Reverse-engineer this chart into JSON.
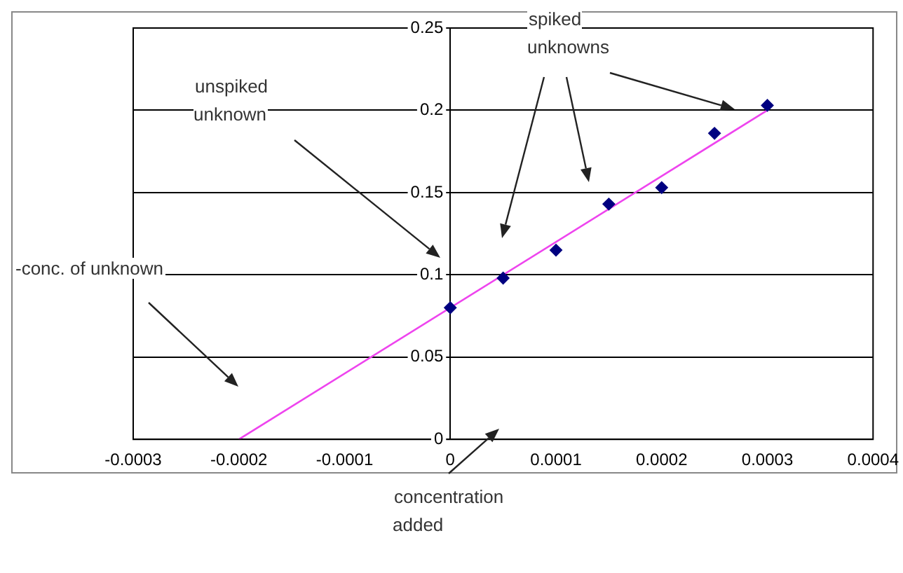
{
  "chart_data": {
    "type": "scatter",
    "annotations": [
      "unspiked unknown",
      "spiked unknowns",
      "-conc. of unknown",
      "concentration added"
    ],
    "series": [
      {
        "type": "scatter",
        "color": "#000080",
        "marker": "diamond",
        "x": [
          0,
          5e-05,
          0.0001,
          0.00015,
          0.0002,
          0.00025,
          0.0003
        ],
        "values": [
          0.08,
          0.098,
          0.115,
          0.143,
          0.153,
          0.186,
          0.203
        ]
      },
      {
        "type": "line",
        "color": "#ee44ee",
        "marker": "none",
        "line_style": "solid",
        "x": [
          -0.0002,
          0.0003
        ],
        "values": [
          0,
          0.2
        ]
      }
    ],
    "xlim": [
      -0.0003,
      0.0004
    ],
    "xticks": [
      -0.0003,
      -0.0002,
      -0.0001,
      0,
      0.0001,
      0.0002,
      0.0003,
      0.0004
    ],
    "ylim": [
      0,
      0.25
    ],
    "yticks": [
      0,
      0.05,
      0.1,
      0.15,
      0.2,
      0.25
    ],
    "grid": "y",
    "legend": false
  }
}
